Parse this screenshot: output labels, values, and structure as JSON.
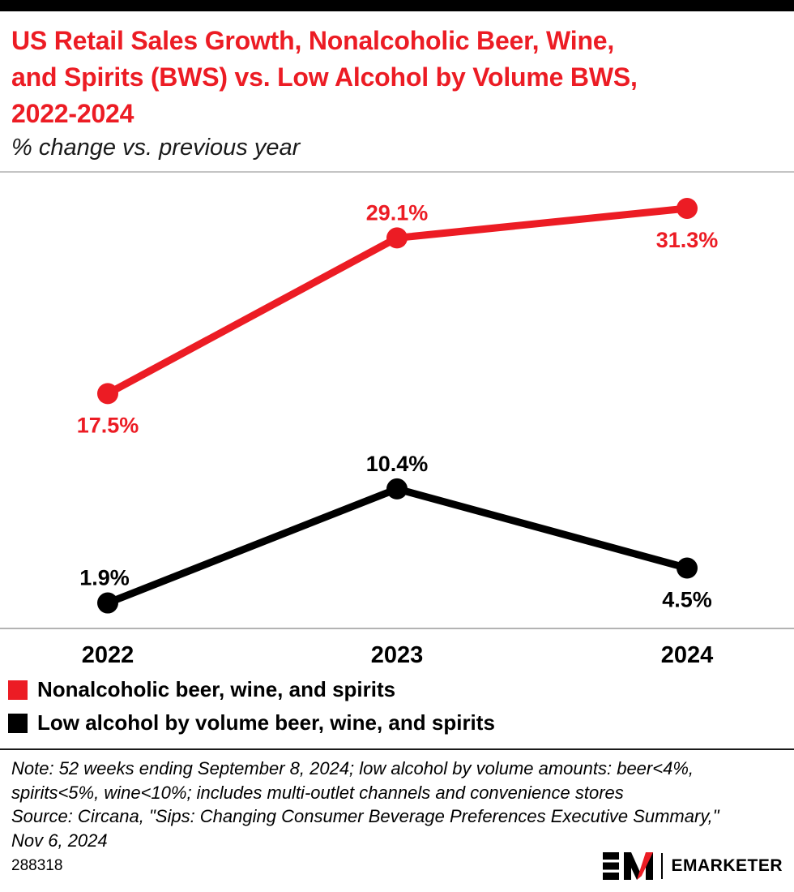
{
  "header": {
    "title": "US Retail Sales Growth, Nonalcoholic Beer, Wine,\nand Spirits (BWS) vs. Low Alcohol by Volume BWS,\n2022-2024",
    "subtitle": "% change vs. previous year"
  },
  "chart_data": {
    "type": "line",
    "categories": [
      "2022",
      "2023",
      "2024"
    ],
    "series": [
      {
        "name": "Nonalcoholic beer, wine, and spirits",
        "color": "#EC1C24",
        "values": [
          17.5,
          29.1,
          31.3
        ],
        "labels": [
          "17.5%",
          "29.1%",
          "31.3%"
        ]
      },
      {
        "name": "Low alcohol by volume beer, wine, and spirits",
        "color": "#000000",
        "values": [
          1.9,
          10.4,
          4.5
        ],
        "labels": [
          "1.9%",
          "10.4%",
          "4.5%"
        ]
      }
    ],
    "ylabel": "% change vs. previous year",
    "ylim": [
      0,
      34
    ],
    "grid": false,
    "legend_position": "bottom"
  },
  "notes": {
    "text": "Note: 52 weeks ending September 8, 2024; low alcohol by volume amounts: beer<4%,\nspirits<5%, wine<10%; includes multi-outlet channels and convenience stores\nSource: Circana, \"Sips: Changing Consumer Beverage Preferences Executive Summary,\"\nNov 6, 2024"
  },
  "footer": {
    "chart_id": "288318",
    "brand": "EMARKETER"
  }
}
